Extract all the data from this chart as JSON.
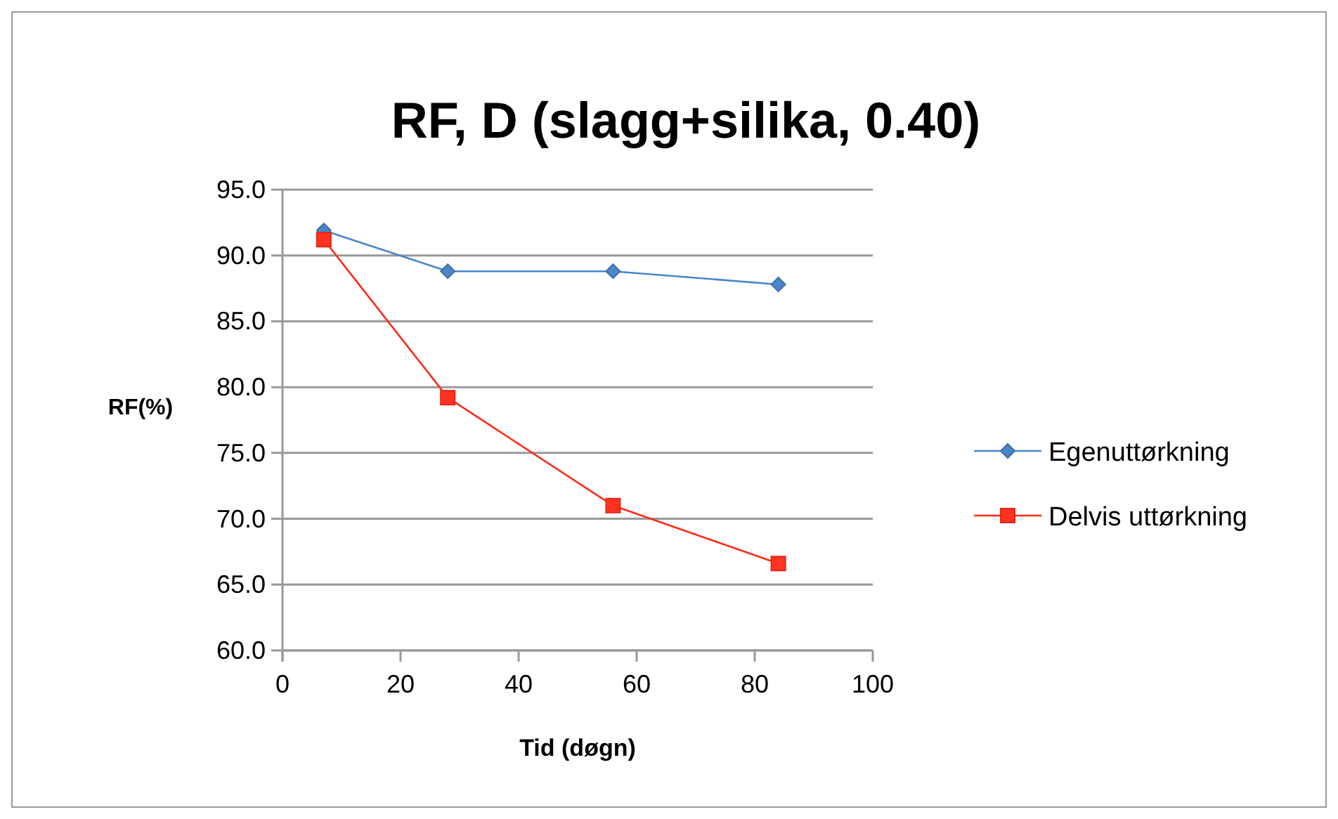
{
  "chart_data": {
    "type": "line",
    "title": "RF, D    (slagg+silika, 0.40)",
    "xlabel": "Tid (døgn)",
    "ylabel": "RF(%)",
    "x": [
      7,
      28,
      56,
      84
    ],
    "series": [
      {
        "name": "Egenuttørkning",
        "color": "#4a86c8",
        "values": [
          91.9,
          88.8,
          88.8,
          87.8
        ],
        "marker": "diamond"
      },
      {
        "name": "Delvis uttørkning",
        "color": "#ff2a1a",
        "values": [
          91.2,
          79.2,
          71.0,
          66.6
        ],
        "marker": "square"
      }
    ],
    "xlim": [
      0,
      100
    ],
    "xticks": [
      0,
      20,
      40,
      60,
      80,
      100
    ],
    "ylim": [
      60,
      95
    ],
    "yticks": [
      {
        "value": 60,
        "label": "60.0"
      },
      {
        "value": 65,
        "label": "65.0"
      },
      {
        "value": 70,
        "label": "70.0"
      },
      {
        "value": 75,
        "label": "75.0"
      },
      {
        "value": 80,
        "label": "80.0"
      },
      {
        "value": 85,
        "label": "85.0"
      },
      {
        "value": 90,
        "label": "90.0"
      },
      {
        "value": 95,
        "label": "95.0"
      }
    ],
    "grid": "y",
    "legend": "right",
    "line_style": "solid"
  }
}
